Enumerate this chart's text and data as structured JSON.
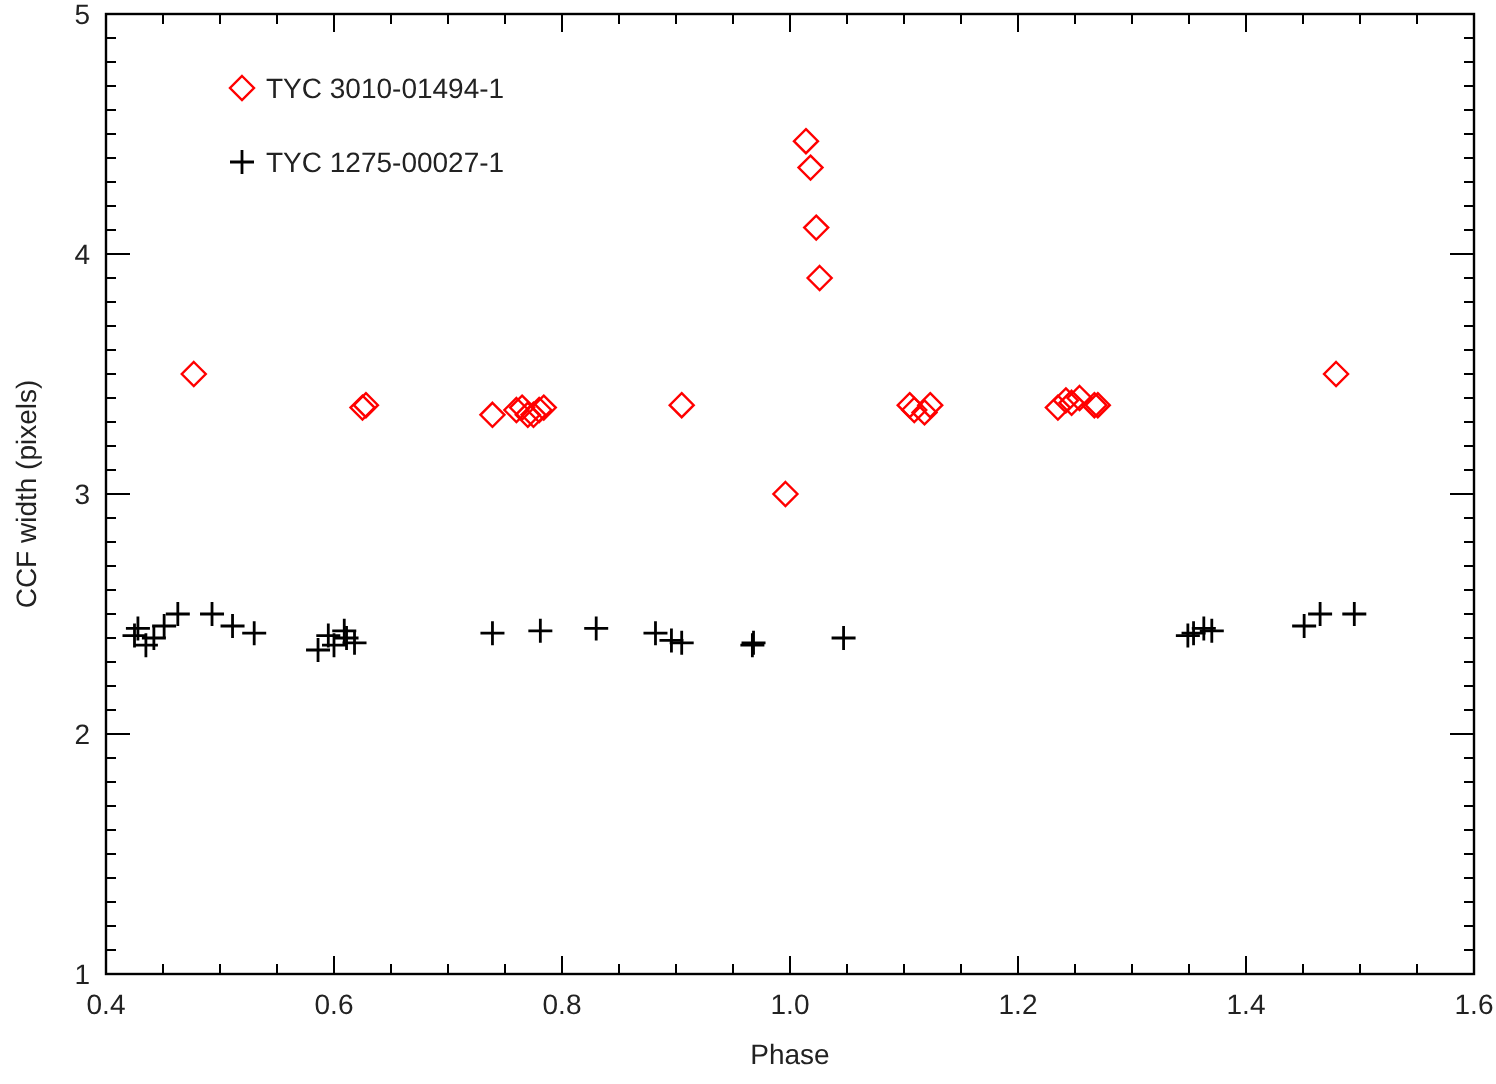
{
  "chart_data": {
    "type": "scatter",
    "xlabel": "Phase",
    "ylabel": "CCF width (pixels)",
    "xlim": [
      0.4,
      1.6
    ],
    "ylim": [
      1,
      5
    ],
    "xticks": [
      0.4,
      {
        "value": 0.45,
        "label": null
      },
      {
        "value": 0.5,
        "label": null
      },
      {
        "value": 0.55,
        "label": null
      },
      {
        "value": 0.6,
        "label": "0.6"
      },
      {
        "value": 0.65,
        "label": null
      },
      {
        "value": 0.7,
        "label": null
      },
      {
        "value": 0.75,
        "label": null
      },
      {
        "value": 0.8,
        "label": "0.8"
      },
      {
        "value": 0.85,
        "label": null
      },
      {
        "value": 0.9,
        "label": null
      },
      {
        "value": 0.95,
        "label": null
      },
      {
        "value": 1,
        "label": "1.0"
      },
      {
        "value": 1.05,
        "label": null
      },
      {
        "value": 1.1,
        "label": null
      },
      {
        "value": 1.15,
        "label": null
      },
      1.2,
      {
        "value": 1.25,
        "label": null
      },
      {
        "value": 1.3,
        "label": null
      },
      {
        "value": 1.35,
        "label": null
      },
      1.4,
      {
        "value": 1.45,
        "label": null
      },
      {
        "value": 1.5,
        "label": null
      },
      {
        "value": 1.55,
        "label": null
      },
      1.6
    ],
    "yticks": [
      1,
      {
        "value": 1.1,
        "label": null
      },
      {
        "value": 1.2,
        "label": null
      },
      {
        "value": 1.3,
        "label": null
      },
      {
        "value": 1.4,
        "label": null
      },
      {
        "value": 1.5,
        "label": null
      },
      {
        "value": 1.6,
        "label": null
      },
      {
        "value": 1.7,
        "label": null
      },
      {
        "value": 1.8,
        "label": null
      },
      {
        "value": 1.9,
        "label": null
      },
      2,
      {
        "value": 2.1,
        "label": null
      },
      {
        "value": 2.2,
        "label": null
      },
      {
        "value": 2.3,
        "label": null
      },
      {
        "value": 2.4,
        "label": null
      },
      {
        "value": 2.5,
        "label": null
      },
      {
        "value": 2.6,
        "label": null
      },
      {
        "value": 2.7,
        "label": null
      },
      {
        "value": 2.8,
        "label": null
      },
      {
        "value": 2.9,
        "label": null
      },
      3,
      {
        "value": 3.1,
        "label": null
      },
      {
        "value": 3.2,
        "label": null
      },
      {
        "value": 3.3,
        "label": null
      },
      {
        "value": 3.4,
        "label": null
      },
      {
        "value": 3.5,
        "label": null
      },
      {
        "value": 3.6,
        "label": null
      },
      {
        "value": 3.7,
        "label": null
      },
      {
        "value": 3.8,
        "label": null
      },
      {
        "value": 3.9,
        "label": null
      },
      4,
      {
        "value": 4.1,
        "label": null
      },
      {
        "value": 4.2,
        "label": null
      },
      {
        "value": 4.3,
        "label": null
      },
      {
        "value": 4.4,
        "label": null
      },
      {
        "value": 4.5,
        "label": null
      },
      {
        "value": 4.6,
        "label": null
      },
      {
        "value": 4.7,
        "label": null
      },
      {
        "value": 4.8,
        "label": null
      },
      {
        "value": 4.9,
        "label": null
      },
      5
    ],
    "legend": "top left",
    "grid": false,
    "series": [
      {
        "name": "TYC 3010-01494-1",
        "color": "#ff0000",
        "marker": "diamond",
        "x": [
          0.477,
          0.625,
          0.628,
          0.739,
          0.76,
          0.765,
          0.77,
          0.775,
          0.78,
          0.784,
          0.905,
          0.996,
          1.014,
          1.018,
          1.023,
          1.026,
          1.105,
          1.109,
          1.118,
          1.123,
          1.235,
          1.242,
          1.247,
          1.254,
          1.267,
          1.27,
          1.479
        ],
        "values": [
          3.5,
          3.36,
          3.37,
          3.33,
          3.35,
          3.36,
          3.33,
          3.33,
          3.35,
          3.36,
          3.37,
          3.0,
          4.47,
          4.36,
          4.11,
          3.9,
          3.37,
          3.35,
          3.34,
          3.37,
          3.36,
          3.39,
          3.38,
          3.4,
          3.37,
          3.37,
          3.5
        ]
      },
      {
        "name": "TYC 1275-00027-1",
        "color": "#000000",
        "marker": "cross",
        "x": [
          0.425,
          0.428,
          0.435,
          0.442,
          0.451,
          0.463,
          0.493,
          0.511,
          0.53,
          0.586,
          0.595,
          0.6,
          0.609,
          0.611,
          0.618,
          0.739,
          0.781,
          0.83,
          0.882,
          0.896,
          0.905,
          0.967,
          0.968,
          1.047,
          1.349,
          1.354,
          1.363,
          1.37,
          1.451,
          1.465,
          1.495
        ],
        "values": [
          2.41,
          2.44,
          2.37,
          2.4,
          2.45,
          2.5,
          2.5,
          2.45,
          2.42,
          2.35,
          2.41,
          2.37,
          2.43,
          2.4,
          2.38,
          2.42,
          2.43,
          2.44,
          2.42,
          2.39,
          2.38,
          2.37,
          2.38,
          2.4,
          2.41,
          2.42,
          2.44,
          2.43,
          2.45,
          2.5,
          2.5
        ]
      }
    ]
  }
}
